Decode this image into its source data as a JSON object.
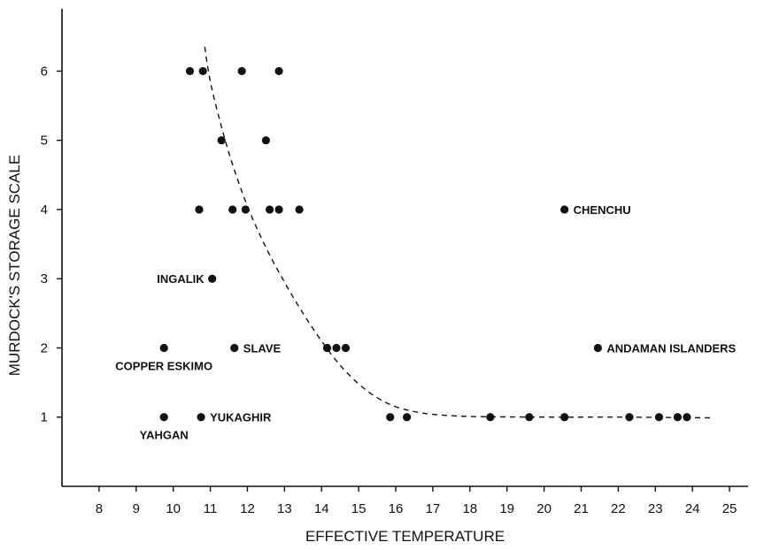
{
  "chart_data": {
    "type": "scatter",
    "xlabel": "EFFECTIVE TEMPERATURE",
    "ylabel": "MURDOCK'S STORAGE SCALE",
    "xlim": [
      7,
      25.5
    ],
    "ylim": [
      0,
      6.9
    ],
    "xticks": [
      8,
      9,
      10,
      11,
      12,
      13,
      14,
      15,
      16,
      17,
      18,
      19,
      20,
      21,
      22,
      23,
      24,
      25
    ],
    "yticks": [
      1,
      2,
      3,
      4,
      5,
      6
    ],
    "grid": false,
    "points": [
      {
        "x": 10.45,
        "y": 6
      },
      {
        "x": 10.8,
        "y": 6
      },
      {
        "x": 11.85,
        "y": 6
      },
      {
        "x": 12.85,
        "y": 6
      },
      {
        "x": 11.3,
        "y": 5
      },
      {
        "x": 12.5,
        "y": 5
      },
      {
        "x": 10.7,
        "y": 4
      },
      {
        "x": 11.6,
        "y": 4
      },
      {
        "x": 11.95,
        "y": 4
      },
      {
        "x": 12.6,
        "y": 4
      },
      {
        "x": 12.85,
        "y": 4
      },
      {
        "x": 13.4,
        "y": 4
      },
      {
        "x": 20.55,
        "y": 4
      },
      {
        "x": 11.05,
        "y": 3
      },
      {
        "x": 9.75,
        "y": 2
      },
      {
        "x": 11.65,
        "y": 2
      },
      {
        "x": 14.15,
        "y": 2
      },
      {
        "x": 14.4,
        "y": 2
      },
      {
        "x": 14.65,
        "y": 2
      },
      {
        "x": 21.45,
        "y": 2
      },
      {
        "x": 9.75,
        "y": 1
      },
      {
        "x": 10.75,
        "y": 1
      },
      {
        "x": 15.85,
        "y": 1
      },
      {
        "x": 16.3,
        "y": 1
      },
      {
        "x": 18.55,
        "y": 1
      },
      {
        "x": 19.6,
        "y": 1
      },
      {
        "x": 20.55,
        "y": 1
      },
      {
        "x": 22.3,
        "y": 1
      },
      {
        "x": 23.1,
        "y": 1
      },
      {
        "x": 23.6,
        "y": 1
      },
      {
        "x": 23.85,
        "y": 1
      }
    ],
    "annotations": [
      {
        "text": "CHENCHU",
        "x": 20.55,
        "y": 4,
        "anchor": "right-of"
      },
      {
        "text": "INGALIK",
        "x": 11.05,
        "y": 3,
        "anchor": "left-of"
      },
      {
        "text": "SLAVE",
        "x": 11.65,
        "y": 2,
        "anchor": "right-of"
      },
      {
        "text": "ANDAMAN ISLANDERS",
        "x": 21.45,
        "y": 2,
        "anchor": "right-of"
      },
      {
        "text": "COPPER ESKIMO",
        "x": 9.75,
        "y": 2,
        "anchor": "below"
      },
      {
        "text": "YUKAGHIR",
        "x": 10.75,
        "y": 1,
        "anchor": "right-of"
      },
      {
        "text": "YAHGAN",
        "x": 9.75,
        "y": 1,
        "anchor": "below"
      }
    ],
    "trend_curve": {
      "style": "dashed",
      "points": [
        [
          10.85,
          6.35
        ],
        [
          11.0,
          5.85
        ],
        [
          11.3,
          5.2
        ],
        [
          11.6,
          4.65
        ],
        [
          12.0,
          4.05
        ],
        [
          12.5,
          3.45
        ],
        [
          13.0,
          2.95
        ],
        [
          13.5,
          2.5
        ],
        [
          14.0,
          2.1
        ],
        [
          14.5,
          1.75
        ],
        [
          15.0,
          1.48
        ],
        [
          15.5,
          1.28
        ],
        [
          16.0,
          1.15
        ],
        [
          16.5,
          1.08
        ],
        [
          17.0,
          1.04
        ],
        [
          18.0,
          1.01
        ],
        [
          20.0,
          1.0
        ],
        [
          22.0,
          1.0
        ],
        [
          24.5,
          0.99
        ]
      ]
    }
  }
}
